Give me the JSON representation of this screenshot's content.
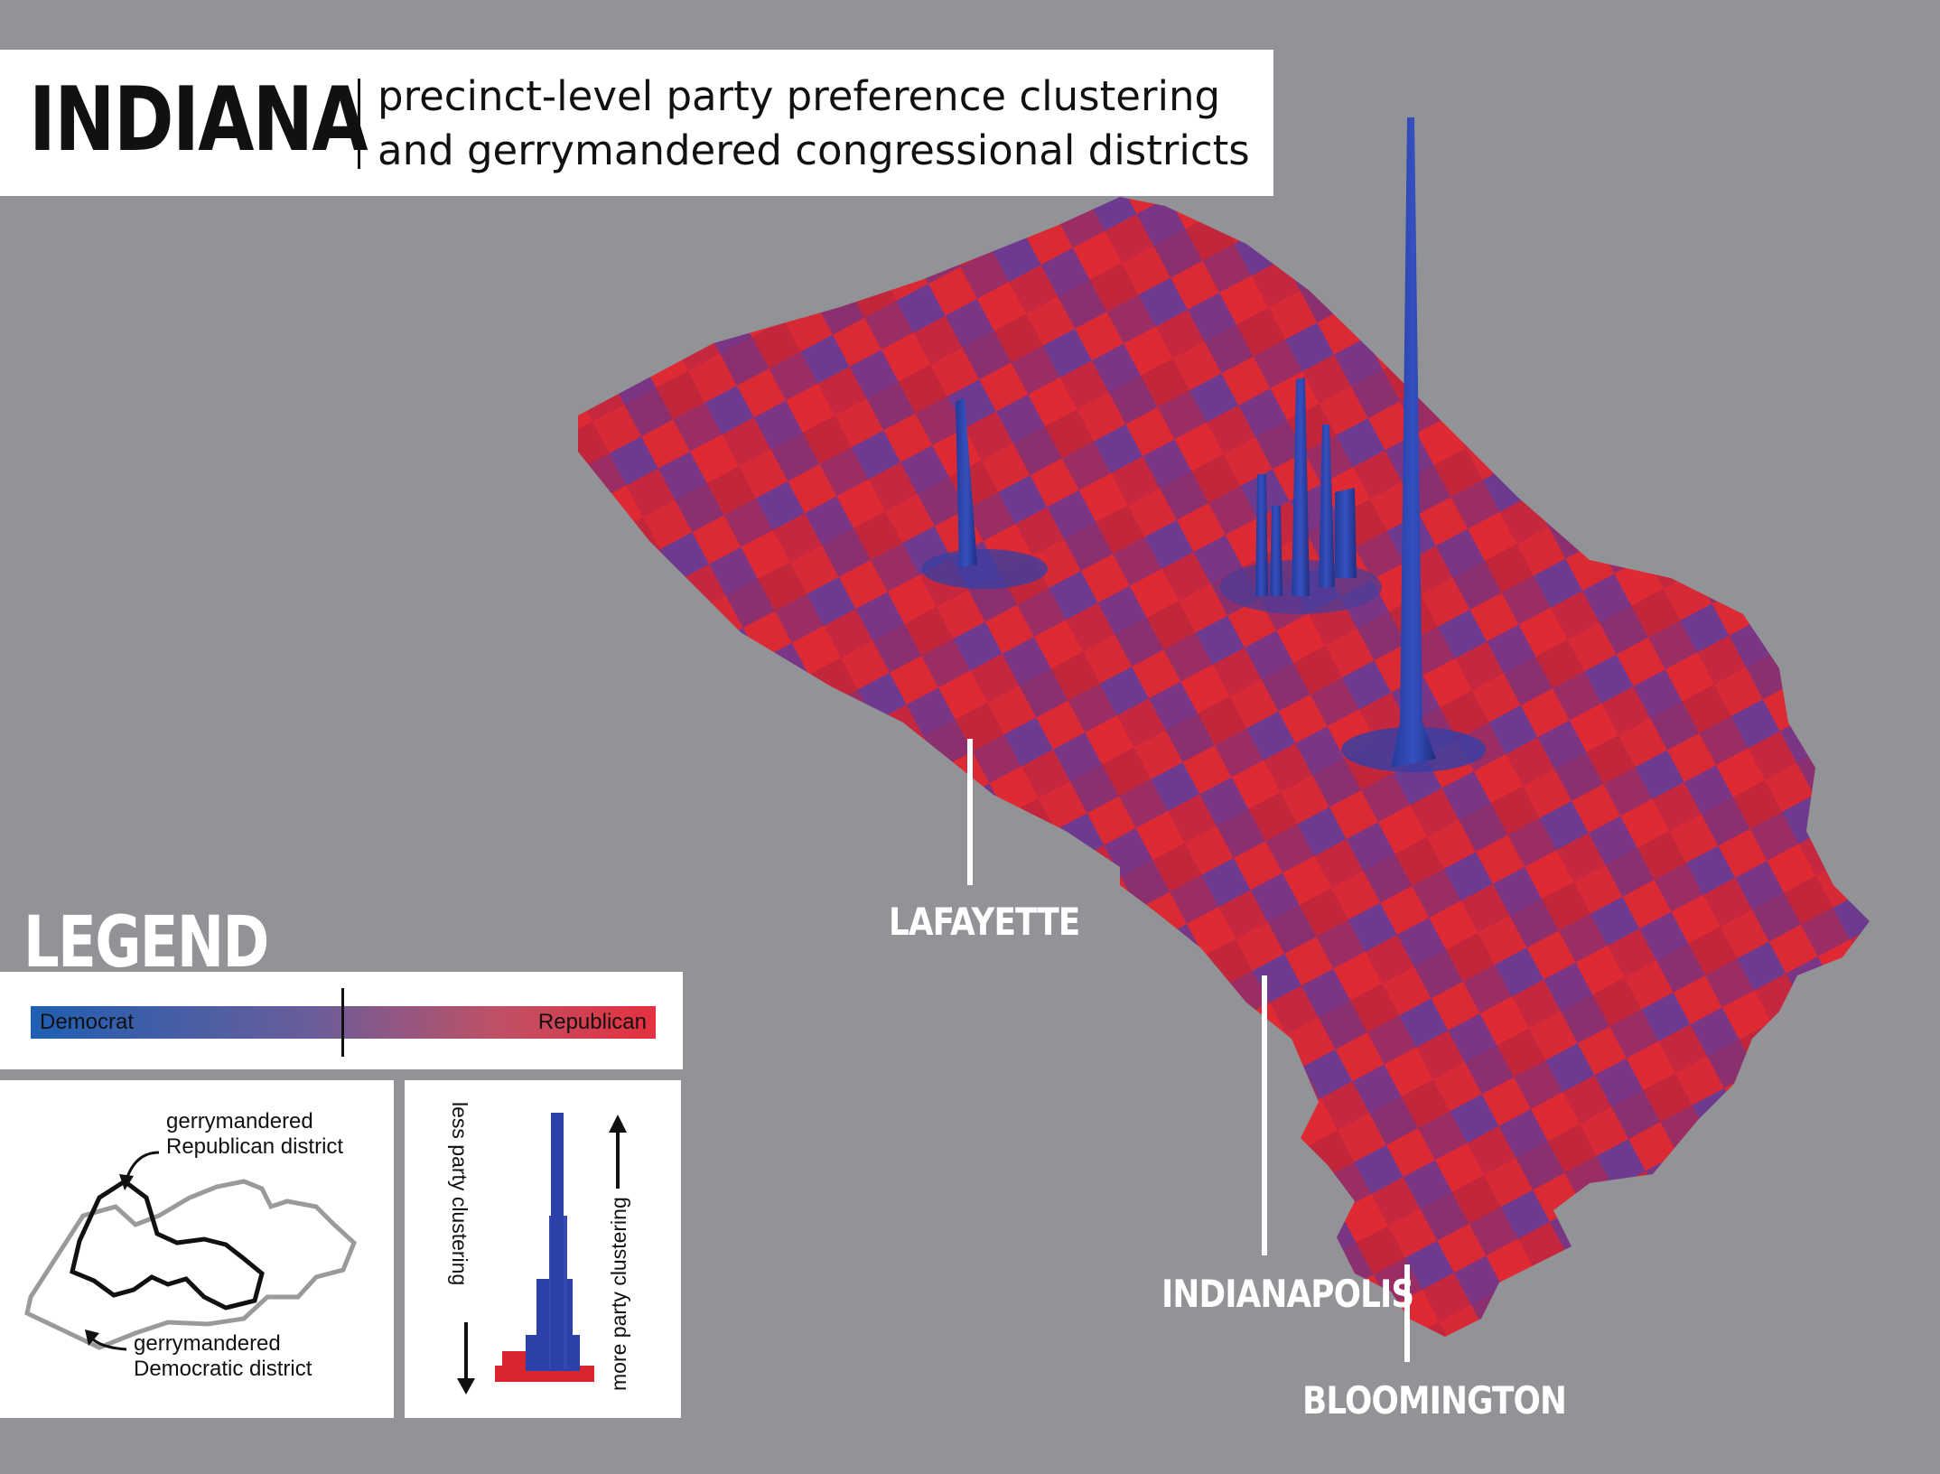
{
  "title": {
    "main": "INDIANA",
    "subtitle_line1": "precinct-level party preference clustering",
    "subtitle_line2": "and gerrymandered congressional districts"
  },
  "cities": [
    {
      "name": "LAFAYETTE"
    },
    {
      "name": "INDIANAPOLIS"
    },
    {
      "name": "BLOOMINGTON"
    }
  ],
  "legend": {
    "title": "LEGEND",
    "scale": {
      "left_label": "Democrat",
      "right_label": "Republican"
    },
    "district": {
      "republican_label_1": "gerrymandered",
      "republican_label_2": "Republican district",
      "democratic_label_1": "gerrymandered",
      "democratic_label_2": "Democratic district"
    },
    "clustering": {
      "less_label": "less  party clustering",
      "more_label": "more party clustering"
    }
  },
  "colors": {
    "background": "#929396",
    "democrat": "#1f5fb3",
    "republican": "#e5303f",
    "spire_blue": "#2a3fa3",
    "purple": "#7a3a8e"
  }
}
